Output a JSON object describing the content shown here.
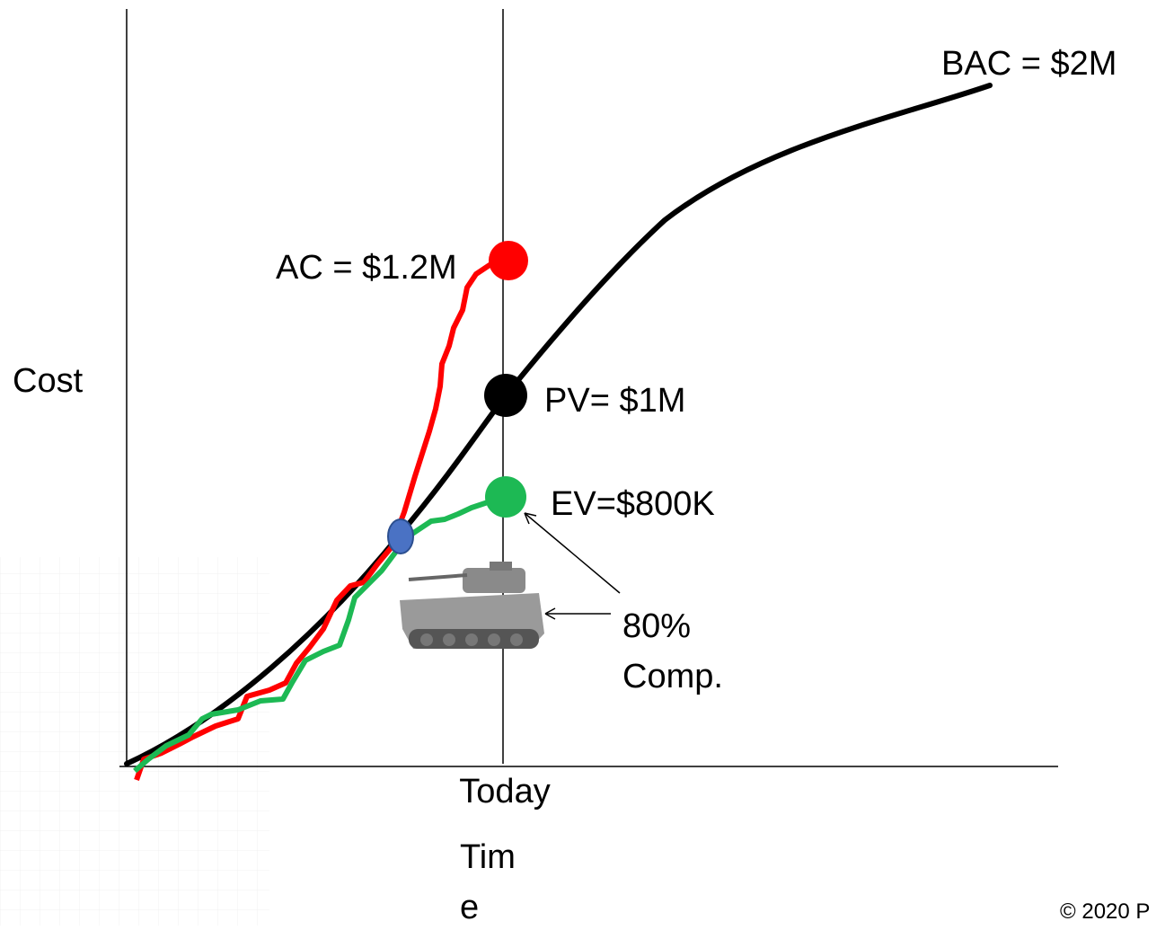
{
  "axes": {
    "y_label": "Cost",
    "today_label": "Today",
    "x_label_lines": [
      "Tim",
      "e"
    ]
  },
  "labels": {
    "bac": "BAC = $2M",
    "ac": "AC = $1.2M",
    "pv": "PV= $1M",
    "ev": "EV=$800K",
    "completion_lines": [
      "80%",
      "Comp."
    ]
  },
  "footer": {
    "copyright": "© 2020 P"
  }
}
